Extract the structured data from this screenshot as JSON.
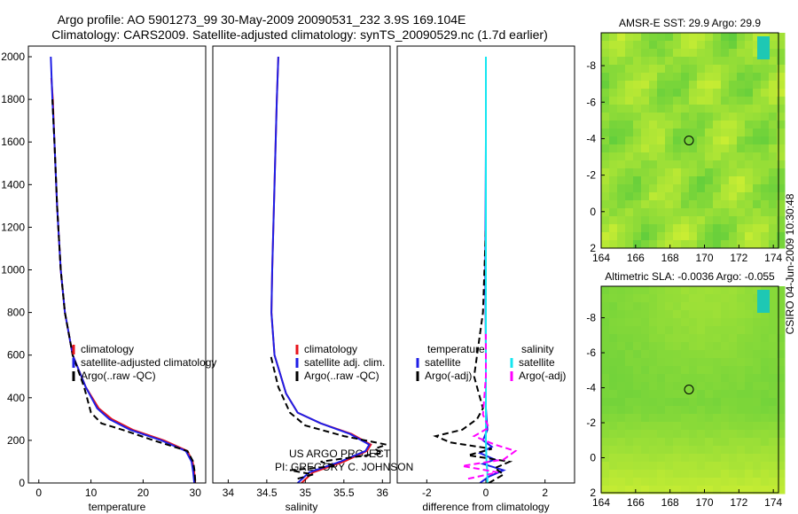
{
  "title": {
    "line1": "Argo profile: AO 5901273_99 30-May-2009 20090531_232 3.9S 169.104E",
    "line2": "Climatology: CARS2009. Satellite-adjusted climatology: synTS_20090529.nc (1.7d earlier)"
  },
  "side_label": "CSIRO 04-Jun-2009 10:30:48",
  "credit": {
    "line1": "US ARGO PROJECT",
    "line2": "PI: GREGORY C. JOHNSON"
  },
  "colors": {
    "climatology": "#e8141c",
    "satellite": "#1e1ee6",
    "argo": "#000000",
    "sat_salinity": "#14e6f0",
    "argo_adj_salinity": "#ff00ff",
    "map_green": "#5fd23c",
    "map_yellow": "#c8f03c",
    "land": "#1ec8b4"
  },
  "chart_data": [
    {
      "type": "line",
      "name": "temperature",
      "xlabel": "temperature",
      "ylabel": "",
      "xlim": [
        -2,
        32
      ],
      "ylim": [
        2050,
        0
      ],
      "xticks": [
        0,
        10,
        20,
        30
      ],
      "yticks": [
        0,
        200,
        400,
        600,
        800,
        1000,
        1200,
        1400,
        1600,
        1800,
        2000
      ],
      "legend": [
        {
          "label": "climatology",
          "color": "#e8141c",
          "dash": false
        },
        {
          "label": "satellite-adjusted climatology",
          "color": "#1e1ee6",
          "dash": false
        },
        {
          "label": "Argo(..raw -QC)",
          "color": "#000000",
          "dash": true
        }
      ],
      "series": [
        {
          "name": "climatology",
          "color": "#e8141c",
          "dash": false,
          "x": [
            30,
            29.8,
            29.5,
            28.5,
            24,
            18,
            14,
            11.5,
            9,
            6.5,
            5,
            4.2,
            3.5,
            3,
            2.7,
            2.4
          ],
          "y": [
            0,
            50,
            100,
            150,
            200,
            250,
            300,
            350,
            450,
            600,
            800,
            1000,
            1300,
            1600,
            1800,
            1900
          ]
        },
        {
          "name": "satellite-adjusted climatology",
          "color": "#1e1ee6",
          "dash": false,
          "x": [
            29.8,
            29.6,
            29.3,
            28.2,
            23.5,
            17.5,
            13.5,
            11.2,
            9,
            6.5,
            5,
            4.2,
            3.5,
            3,
            2.6,
            2.3
          ],
          "y": [
            0,
            50,
            100,
            150,
            200,
            250,
            300,
            350,
            450,
            600,
            800,
            1000,
            1300,
            1600,
            1800,
            2000
          ]
        },
        {
          "name": "Argo(..raw -QC)",
          "color": "#000000",
          "dash": true,
          "x": [
            30,
            29.9,
            29.6,
            28.5,
            22,
            16,
            12,
            10,
            8.7,
            6.5,
            5,
            4.2,
            3.5,
            3,
            2.6
          ],
          "y": [
            10,
            50,
            100,
            150,
            200,
            250,
            280,
            330,
            450,
            600,
            800,
            1000,
            1300,
            1600,
            1800
          ]
        }
      ]
    },
    {
      "type": "line",
      "name": "salinity",
      "xlabel": "salinity",
      "ylabel": "",
      "xlim": [
        33.8,
        36.1
      ],
      "ylim": [
        2050,
        0
      ],
      "xticks": [
        34,
        34.5,
        35,
        35.5,
        36
      ],
      "yticks": [],
      "legend": [
        {
          "label": "climatology",
          "color": "#e8141c",
          "dash": false
        },
        {
          "label": "satellite adj. clim.",
          "color": "#1e1ee6",
          "dash": false
        },
        {
          "label": "Argo(..raw -QC)",
          "color": "#000000",
          "dash": true
        }
      ],
      "series": [
        {
          "name": "climatology",
          "color": "#e8141c",
          "dash": false,
          "x": [
            34.95,
            35.1,
            35.5,
            35.8,
            35.85,
            35.6,
            35.2,
            34.9,
            34.75,
            34.6,
            34.56,
            34.57,
            34.6,
            34.63,
            34.65
          ],
          "y": [
            0,
            50,
            100,
            150,
            180,
            230,
            280,
            330,
            420,
            600,
            800,
            1000,
            1400,
            1800,
            2000
          ]
        },
        {
          "name": "satellite adj. clim.",
          "color": "#1e1ee6",
          "dash": false,
          "x": [
            34.9,
            35.05,
            35.45,
            35.78,
            35.83,
            35.58,
            35.2,
            34.9,
            34.75,
            34.6,
            34.56,
            34.57,
            34.6,
            34.63,
            34.65
          ],
          "y": [
            0,
            50,
            100,
            150,
            180,
            230,
            280,
            330,
            420,
            600,
            800,
            1000,
            1400,
            1800,
            2000
          ]
        },
        {
          "name": "Argo(..raw -QC)",
          "color": "#000000",
          "dash": true,
          "x": [
            34.9,
            35.1,
            34.8,
            35.4,
            35.2,
            35.6,
            36.0,
            35.9,
            36.05,
            35.5,
            35.0,
            34.8,
            34.65,
            34.55
          ],
          "y": [
            20,
            40,
            60,
            80,
            100,
            120,
            140,
            160,
            180,
            220,
            270,
            330,
            450,
            600
          ]
        }
      ]
    },
    {
      "type": "line",
      "name": "difference",
      "xlabel": "difference from climatology",
      "ylabel": "",
      "xlim": [
        -3,
        3
      ],
      "ylim": [
        2050,
        0
      ],
      "xticks": [
        -2,
        0,
        2
      ],
      "yticks": [],
      "legend": [
        {
          "label": "temperature",
          "color": "",
          "dash": false
        },
        {
          "label": "satellite",
          "color": "#1e1ee6",
          "dash": false
        },
        {
          "label": "Argo(-adj)",
          "color": "#000000",
          "dash": true
        },
        {
          "label": "salinity",
          "color": "",
          "dash": false
        },
        {
          "label": "satellite",
          "color": "#14e6f0",
          "dash": false
        },
        {
          "label": "Argo(-adj)",
          "color": "#ff00ff",
          "dash": true
        }
      ],
      "series": [
        {
          "name": "temperature satellite",
          "color": "#1e1ee6",
          "dash": false,
          "x": [
            -0.2,
            0.1,
            0.6,
            -0.1,
            0.3,
            -0.2,
            0.2,
            -0.1,
            0.05,
            0,
            0,
            -0.02,
            0,
            0
          ],
          "y": [
            0,
            30,
            60,
            90,
            110,
            140,
            170,
            200,
            250,
            350,
            600,
            1000,
            1600,
            2000
          ]
        },
        {
          "name": "temperature Argo(-adj)",
          "color": "#000000",
          "dash": true,
          "x": [
            0.1,
            0.6,
            0.3,
            0.8,
            -0.6,
            0.2,
            -1.2,
            -1.7,
            -0.8,
            -0.3,
            -0.1,
            -0.4,
            -0.1,
            0
          ],
          "y": [
            0,
            40,
            70,
            100,
            130,
            160,
            190,
            220,
            250,
            300,
            350,
            500,
            800,
            1200
          ]
        },
        {
          "name": "salinity satellite",
          "color": "#14e6f0",
          "dash": false,
          "x": [
            0.05,
            0.05,
            0.02,
            0,
            0,
            0,
            0,
            0
          ],
          "y": [
            0,
            50,
            100,
            200,
            500,
            1000,
            1500,
            2000
          ]
        },
        {
          "name": "salinity Argo(-adj)",
          "color": "#ff00ff",
          "dash": true,
          "x": [
            -0.6,
            0.4,
            -0.8,
            0.6,
            1.0,
            0.3,
            -0.4,
            0.1,
            -0.1,
            0,
            0
          ],
          "y": [
            20,
            50,
            80,
            110,
            150,
            180,
            220,
            260,
            320,
            500,
            700
          ]
        }
      ]
    },
    {
      "type": "heatmap",
      "name": "amsre_sst",
      "title": "AMSR-E SST: 29.9 Argo: 29.9",
      "xlim": [
        164,
        174.3
      ],
      "ylim": [
        -9.8,
        2
      ],
      "xticks": [
        164,
        166,
        168,
        170,
        172,
        174
      ],
      "yticks": [
        2,
        0,
        -2,
        -4,
        -6,
        -8
      ],
      "marker": {
        "x": 169.1,
        "y": -3.9
      }
    },
    {
      "type": "heatmap",
      "name": "altimetric_sla",
      "title": "Altimetric SLA: -0.0036 Argo: -0.055",
      "xlim": [
        164,
        174.3
      ],
      "ylim": [
        -9.8,
        2
      ],
      "xticks": [
        164,
        166,
        168,
        170,
        172,
        174
      ],
      "yticks": [
        2,
        0,
        -2,
        -4,
        -6,
        -8
      ],
      "marker": {
        "x": 169.1,
        "y": -3.9
      }
    }
  ]
}
